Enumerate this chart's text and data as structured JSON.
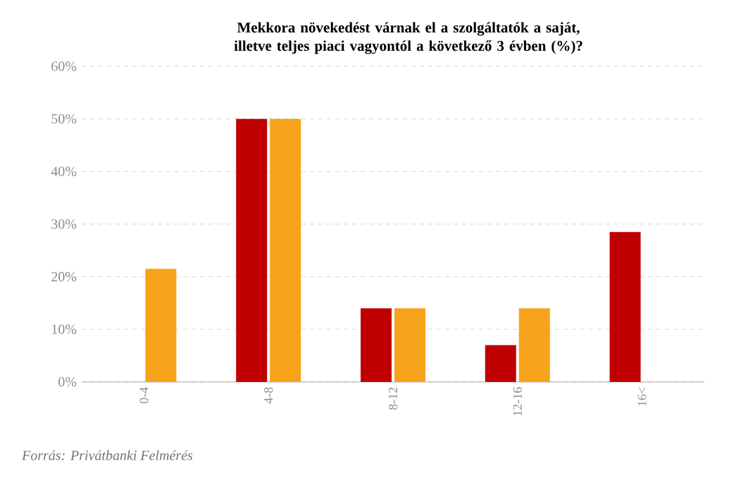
{
  "chart_data": {
    "type": "bar",
    "title": "Mekkora növekedést várnak el a szolgáltatók a saját, illetve teljes piaci vagyontól a következő 3 évben (%)?",
    "categories": [
      "0-4",
      "4-8",
      "8-12",
      "12-16",
      "16<"
    ],
    "series": [
      {
        "color": "#c00000",
        "values": [
          null,
          50,
          14,
          7,
          28.5
        ]
      },
      {
        "color": "#f7a21b",
        "values": [
          21.5,
          50,
          14,
          14,
          null
        ]
      }
    ],
    "ylim": [
      0,
      60
    ],
    "yticks": [
      {
        "value": 0,
        "label": "0%"
      },
      {
        "value": 10,
        "label": "10%"
      },
      {
        "value": 20,
        "label": "20%"
      },
      {
        "value": 30,
        "label": "30%"
      },
      {
        "value": 40,
        "label": "40%"
      },
      {
        "value": 50,
        "label": "50%"
      },
      {
        "value": 60,
        "label": "60%"
      }
    ],
    "grid": "y",
    "annotations": [
      "Forrás: Privátbanki Felmérés"
    ]
  }
}
